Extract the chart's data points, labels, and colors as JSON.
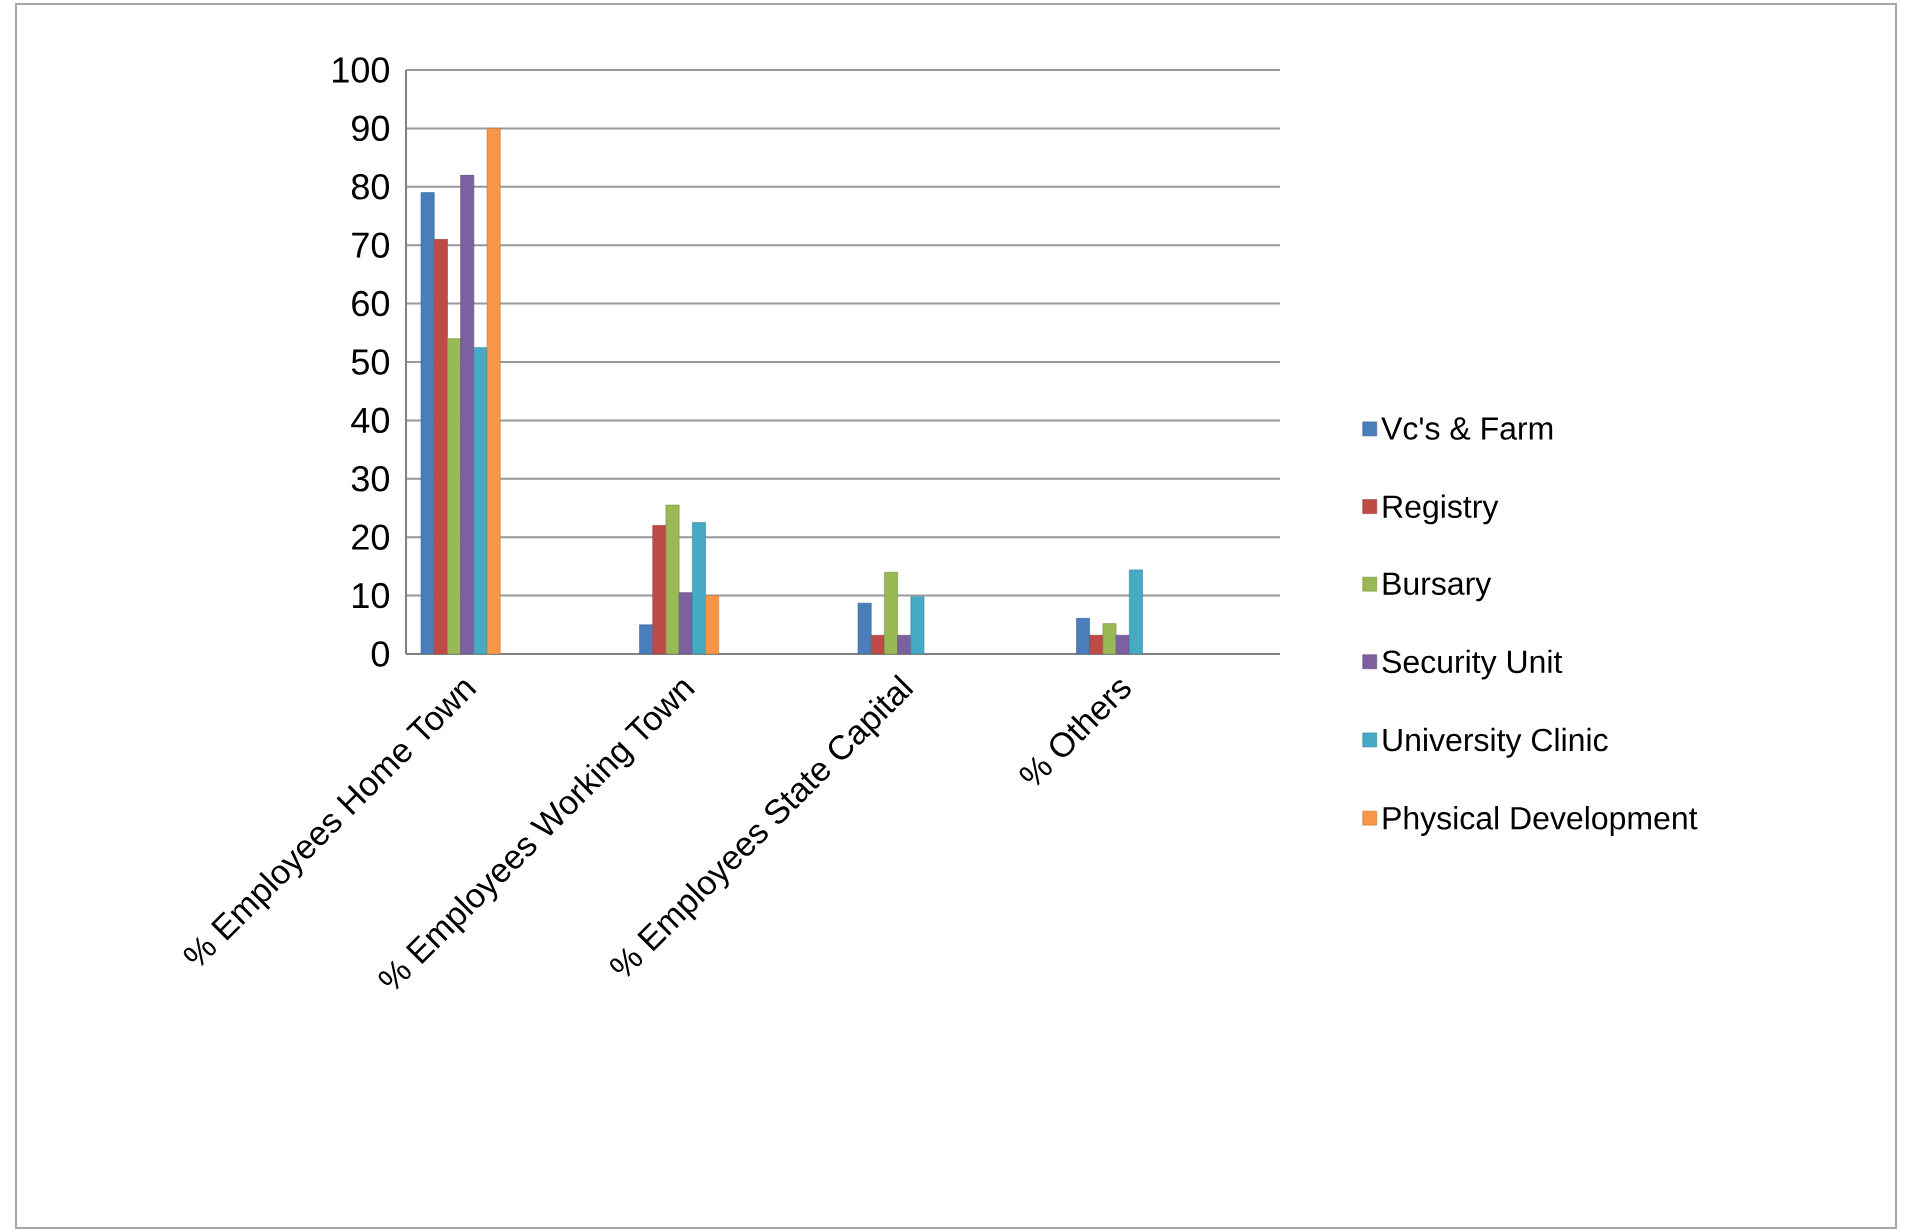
{
  "chart_data": {
    "type": "bar",
    "categories": [
      "% Employees Home Town",
      null,
      "% Employees Working Town",
      null,
      "% Employees State Capital",
      null,
      "% Others",
      null
    ],
    "series": [
      {
        "name": "Vc's & Farm",
        "color": "#4a7ebb",
        "values": [
          79,
          null,
          5,
          null,
          8.7,
          null,
          6.1,
          null
        ]
      },
      {
        "name": "Registry",
        "color": "#be4b48",
        "values": [
          71,
          null,
          22,
          null,
          3.2,
          null,
          3.2,
          null
        ]
      },
      {
        "name": "Bursary",
        "color": "#98b954",
        "values": [
          54,
          null,
          25.5,
          null,
          14,
          null,
          5.2,
          null
        ]
      },
      {
        "name": "Security Unit",
        "color": "#7d60a0",
        "values": [
          82,
          null,
          10.5,
          null,
          3.2,
          null,
          3.2,
          null
        ]
      },
      {
        "name": "University Clinic",
        "color": "#46aac5",
        "values": [
          52.5,
          null,
          22.5,
          null,
          9.8,
          null,
          14.4,
          null
        ]
      },
      {
        "name": "Physical Development",
        "color": "#f79646",
        "values": [
          90,
          null,
          10,
          null,
          null,
          null,
          null,
          null
        ]
      }
    ],
    "ylim": [
      0,
      100
    ],
    "yticks": [
      0,
      10,
      20,
      30,
      40,
      50,
      60,
      70,
      80,
      90,
      100
    ],
    "grid": "y",
    "legend": "right"
  }
}
